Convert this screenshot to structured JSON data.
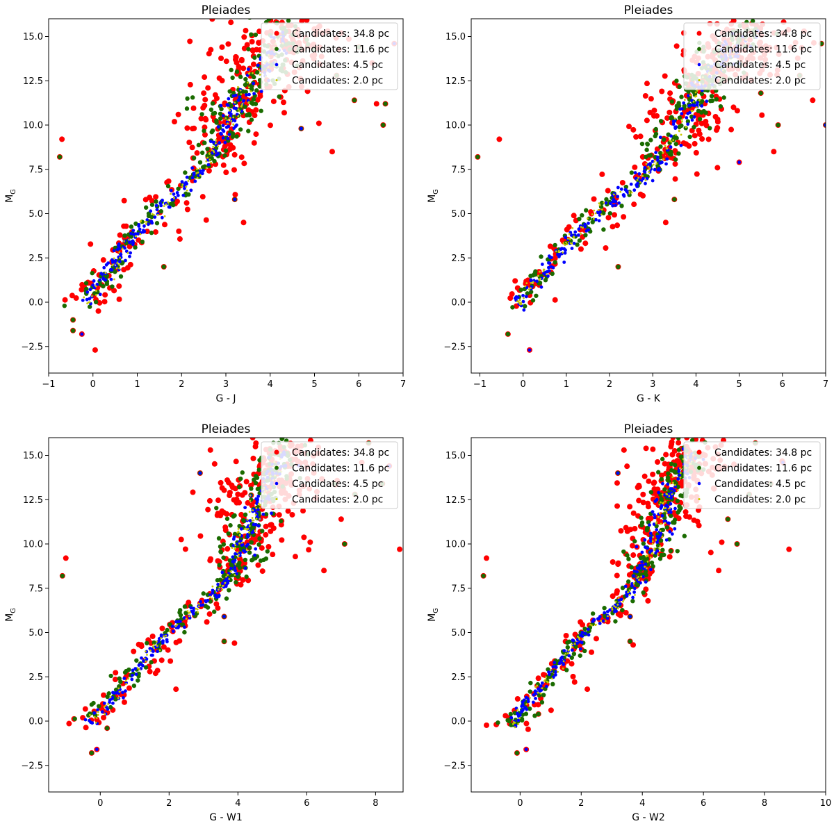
{
  "chart_data": [
    {
      "type": "scatter",
      "title": "Pleiades",
      "xlabel": "G - J",
      "ylabel_main": "M",
      "ylabel_sub": "G",
      "xlim": [
        -1,
        7
      ],
      "ylim": [
        16,
        -4
      ],
      "y_inverted": true,
      "xticks": [
        -1,
        0,
        1,
        2,
        3,
        4,
        5,
        6,
        7
      ],
      "yticks": [
        -2.5,
        0.0,
        2.5,
        5.0,
        7.5,
        10.0,
        12.5,
        15.0
      ],
      "ytick_labels": [
        "−2.5",
        "0.0",
        "2.5",
        "5.0",
        "7.5",
        "10.0",
        "12.5",
        "15.0"
      ],
      "xtick_labels": [
        "−1",
        "0",
        "1",
        "2",
        "3",
        "4",
        "5",
        "6",
        "7"
      ],
      "legend_position": "top-right",
      "sequence_anchors": [
        [
          -0.1,
          0.2
        ],
        [
          0.3,
          1.5
        ],
        [
          0.8,
          3.3
        ],
        [
          1.3,
          4.8
        ],
        [
          1.8,
          6.0
        ],
        [
          2.3,
          7.0
        ],
        [
          2.7,
          8.3
        ],
        [
          3.0,
          9.8
        ],
        [
          3.3,
          11.2
        ],
        [
          3.7,
          12.8
        ],
        [
          4.0,
          13.8
        ],
        [
          4.3,
          15.0
        ]
      ],
      "series": [
        {
          "name": "Candidates: 34.8 pc",
          "color": "#ff0000",
          "count": 320,
          "scatter": 0.45
        },
        {
          "name": "Candidates: 11.6 pc",
          "color": "#1a6b00",
          "count": 240,
          "scatter": 0.28
        },
        {
          "name": "Candidates: 4.5 pc",
          "color": "#0000ff",
          "count": 210,
          "scatter": 0.14
        },
        {
          "name": "Candidates: 2.0 pc",
          "color": "#c8c800",
          "count": 120,
          "scatter": 0.1
        }
      ],
      "outliers": [
        [
          -0.75,
          8.2
        ],
        [
          -0.7,
          9.2
        ],
        [
          -0.45,
          -1.6
        ],
        [
          -0.25,
          -1.8
        ],
        [
          -0.45,
          -1.0
        ],
        [
          0.05,
          -2.7
        ],
        [
          1.6,
          2.0
        ],
        [
          3.4,
          4.5
        ],
        [
          3.2,
          5.8
        ],
        [
          5.4,
          8.5
        ],
        [
          6.55,
          10.0
        ],
        [
          6.4,
          11.2
        ],
        [
          6.6,
          11.2
        ],
        [
          6.8,
          14.6
        ],
        [
          6.0,
          14.4
        ],
        [
          6.3,
          13.5
        ],
        [
          5.5,
          12.8
        ],
        [
          5.1,
          10.1
        ],
        [
          4.7,
          9.8
        ],
        [
          2.5,
          11.8
        ],
        [
          5.9,
          11.4
        ],
        [
          5.3,
          15.3
        ]
      ]
    },
    {
      "type": "scatter",
      "title": "Pleiades",
      "xlabel": "G - K",
      "ylabel_main": "M",
      "ylabel_sub": "G",
      "xlim": [
        -1.2,
        7
      ],
      "ylim": [
        16,
        -4
      ],
      "y_inverted": true,
      "xticks": [
        -1,
        0,
        1,
        2,
        3,
        4,
        5,
        6,
        7
      ],
      "yticks": [
        -2.5,
        0.0,
        2.5,
        5.0,
        7.5,
        10.0,
        12.5,
        15.0
      ],
      "ytick_labels": [
        "−2.5",
        "0.0",
        "2.5",
        "5.0",
        "7.5",
        "10.0",
        "12.5",
        "15.0"
      ],
      "xtick_labels": [
        "−1",
        "0",
        "1",
        "2",
        "3",
        "4",
        "5",
        "6",
        "7"
      ],
      "legend_position": "top-right",
      "sequence_anchors": [
        [
          -0.1,
          0.2
        ],
        [
          0.4,
          1.5
        ],
        [
          1.0,
          3.3
        ],
        [
          1.6,
          4.8
        ],
        [
          2.2,
          6.0
        ],
        [
          2.8,
          7.0
        ],
        [
          3.2,
          8.3
        ],
        [
          3.6,
          9.8
        ],
        [
          3.9,
          11.2
        ],
        [
          4.3,
          12.8
        ],
        [
          4.7,
          13.8
        ],
        [
          5.0,
          15.0
        ]
      ],
      "series": [
        {
          "name": "Candidates: 34.8 pc",
          "color": "#ff0000",
          "count": 320,
          "scatter": 0.45
        },
        {
          "name": "Candidates: 11.6 pc",
          "color": "#1a6b00",
          "count": 240,
          "scatter": 0.28
        },
        {
          "name": "Candidates: 4.5 pc",
          "color": "#0000ff",
          "count": 210,
          "scatter": 0.14
        },
        {
          "name": "Candidates: 2.0 pc",
          "color": "#c8c800",
          "count": 120,
          "scatter": 0.1
        }
      ],
      "outliers": [
        [
          -1.05,
          8.2
        ],
        [
          -0.55,
          9.2
        ],
        [
          -0.35,
          -1.8
        ],
        [
          0.15,
          -2.7
        ],
        [
          2.2,
          2.0
        ],
        [
          3.3,
          4.5
        ],
        [
          3.5,
          5.8
        ],
        [
          5.8,
          8.5
        ],
        [
          7.0,
          10.0
        ],
        [
          6.7,
          11.4
        ],
        [
          6.9,
          14.6
        ],
        [
          6.5,
          15.3
        ],
        [
          6.4,
          12.8
        ],
        [
          5.0,
          7.9
        ],
        [
          5.9,
          10.0
        ],
        [
          3.4,
          11.8
        ],
        [
          5.5,
          11.8
        ]
      ]
    },
    {
      "type": "scatter",
      "title": "Pleiades",
      "xlabel": "G - W1",
      "ylabel_main": "M",
      "ylabel_sub": "G",
      "xlim": [
        -1.5,
        8.8
      ],
      "ylim": [
        16,
        -4
      ],
      "y_inverted": true,
      "xticks": [
        0,
        2,
        4,
        6,
        8
      ],
      "yticks": [
        -2.5,
        0.0,
        2.5,
        5.0,
        7.5,
        10.0,
        12.5,
        15.0
      ],
      "ytick_labels": [
        "−2.5",
        "0.0",
        "2.5",
        "5.0",
        "7.5",
        "10.0",
        "12.5",
        "15.0"
      ],
      "xtick_labels": [
        "0",
        "2",
        "4",
        "6",
        "8"
      ],
      "legend_position": "top-right",
      "sequence_anchors": [
        [
          -0.2,
          0.1
        ],
        [
          0.5,
          1.5
        ],
        [
          1.2,
          3.3
        ],
        [
          1.9,
          4.8
        ],
        [
          2.6,
          6.0
        ],
        [
          3.3,
          7.0
        ],
        [
          3.8,
          8.3
        ],
        [
          4.1,
          9.8
        ],
        [
          4.4,
          11.2
        ],
        [
          4.7,
          12.8
        ],
        [
          5.0,
          13.8
        ],
        [
          5.3,
          14.8
        ]
      ],
      "series": [
        {
          "name": "Candidates: 34.8 pc",
          "color": "#ff0000",
          "count": 330,
          "scatter": 0.5
        },
        {
          "name": "Candidates: 11.6 pc",
          "color": "#1a6b00",
          "count": 240,
          "scatter": 0.3
        },
        {
          "name": "Candidates: 4.5 pc",
          "color": "#0000ff",
          "count": 210,
          "scatter": 0.15
        },
        {
          "name": "Candidates: 2.0 pc",
          "color": "#c8c800",
          "count": 120,
          "scatter": 0.1
        }
      ],
      "outliers": [
        [
          -1.1,
          8.2
        ],
        [
          -1.0,
          9.2
        ],
        [
          -0.25,
          -1.8
        ],
        [
          -0.1,
          -1.6
        ],
        [
          0.2,
          -0.4
        ],
        [
          2.2,
          1.8
        ],
        [
          3.6,
          4.5
        ],
        [
          3.9,
          4.4
        ],
        [
          3.6,
          5.9
        ],
        [
          6.5,
          8.5
        ],
        [
          7.1,
          10.0
        ],
        [
          8.7,
          9.7
        ],
        [
          8.2,
          13.4
        ],
        [
          8.4,
          14.4
        ],
        [
          7.8,
          15.7
        ],
        [
          7.6,
          14.6
        ],
        [
          7.4,
          12.8
        ],
        [
          6.1,
          10.1
        ],
        [
          2.9,
          14.0
        ],
        [
          3.2,
          15.3
        ],
        [
          6.8,
          13.4
        ],
        [
          7.0,
          11.4
        ]
      ]
    },
    {
      "type": "scatter",
      "title": "Pleiades",
      "xlabel": "G - W2",
      "ylabel_main": "M",
      "ylabel_sub": "G",
      "xlim": [
        -1.6,
        10
      ],
      "ylim": [
        16,
        -4
      ],
      "y_inverted": true,
      "xticks": [
        0,
        2,
        4,
        6,
        8,
        10
      ],
      "yticks": [
        -2.5,
        0.0,
        2.5,
        5.0,
        7.5,
        10.0,
        12.5,
        15.0
      ],
      "ytick_labels": [
        "−2.5",
        "0.0",
        "2.5",
        "5.0",
        "7.5",
        "10.0",
        "12.5",
        "15.0"
      ],
      "xtick_labels": [
        "0",
        "2",
        "4",
        "6",
        "8",
        "10"
      ],
      "legend_position": "top-right",
      "sequence_anchors": [
        [
          -0.2,
          0.1
        ],
        [
          0.5,
          1.5
        ],
        [
          1.3,
          3.3
        ],
        [
          2.0,
          4.8
        ],
        [
          2.8,
          6.0
        ],
        [
          3.5,
          7.0
        ],
        [
          3.9,
          8.3
        ],
        [
          4.3,
          9.8
        ],
        [
          4.6,
          11.2
        ],
        [
          4.9,
          12.8
        ],
        [
          5.2,
          13.8
        ],
        [
          5.5,
          14.8
        ]
      ],
      "series": [
        {
          "name": "Candidates: 34.8 pc",
          "color": "#ff0000",
          "count": 330,
          "scatter": 0.5
        },
        {
          "name": "Candidates: 11.6 pc",
          "color": "#1a6b00",
          "count": 240,
          "scatter": 0.3
        },
        {
          "name": "Candidates: 4.5 pc",
          "color": "#0000ff",
          "count": 210,
          "scatter": 0.15
        },
        {
          "name": "Candidates: 2.0 pc",
          "color": "#c8c800",
          "count": 120,
          "scatter": 0.1
        }
      ],
      "outliers": [
        [
          -1.2,
          8.2
        ],
        [
          -1.1,
          9.2
        ],
        [
          -0.1,
          -1.8
        ],
        [
          0.2,
          -1.6
        ],
        [
          0.6,
          0.4
        ],
        [
          2.2,
          1.8
        ],
        [
          3.6,
          4.5
        ],
        [
          3.7,
          4.3
        ],
        [
          3.6,
          5.9
        ],
        [
          6.5,
          8.5
        ],
        [
          7.1,
          10.0
        ],
        [
          8.8,
          9.7
        ],
        [
          8.2,
          13.4
        ],
        [
          8.6,
          14.6
        ],
        [
          7.7,
          15.7
        ],
        [
          7.0,
          14.5
        ],
        [
          7.5,
          12.8
        ],
        [
          6.6,
          10.1
        ],
        [
          3.2,
          14.0
        ],
        [
          3.4,
          15.3
        ],
        [
          6.8,
          11.4
        ],
        [
          5.1,
          11.6
        ]
      ]
    }
  ]
}
